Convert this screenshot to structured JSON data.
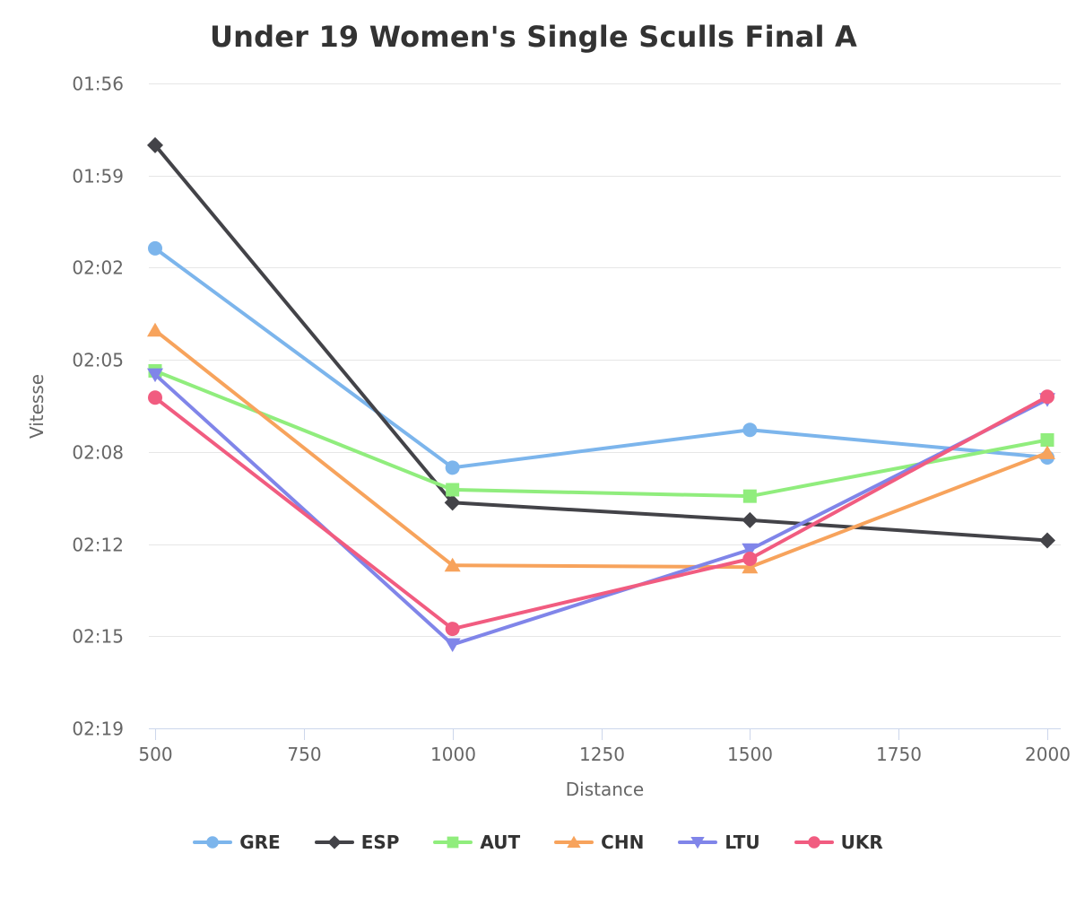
{
  "chart_data": {
    "type": "line",
    "title": "Under 19 Women's Single Sculls Final A",
    "xlabel": "Distance",
    "ylabel": "Vitesse",
    "grid": "horizontal-only",
    "legend_position": "bottom",
    "x": [
      500,
      1000,
      1500,
      2000
    ],
    "x_axis": {
      "tick_labels": [
        "500",
        "750",
        "1000",
        "1250",
        "1500",
        "1750",
        "2000"
      ],
      "tick_values": [
        500,
        750,
        1000,
        1250,
        1500,
        1750,
        2000
      ],
      "range_shown": [
        490,
        2023
      ]
    },
    "y_axis": {
      "note": "speed axis linear in m/s, tick labels shown as pace per 500m",
      "range_mps": [
        3.6,
        4.3
      ],
      "ticks": [
        {
          "speed_mps": 4.3,
          "label": "01:56"
        },
        {
          "speed_mps": 4.2,
          "label": "01:59"
        },
        {
          "speed_mps": 4.1,
          "label": "02:02"
        },
        {
          "speed_mps": 4.0,
          "label": "02:05"
        },
        {
          "speed_mps": 3.9,
          "label": "02:08"
        },
        {
          "speed_mps": 3.8,
          "label": "02:12"
        },
        {
          "speed_mps": 3.7,
          "label": "02:15"
        },
        {
          "speed_mps": 3.6,
          "label": "02:19"
        }
      ]
    },
    "series": [
      {
        "name": "GRE",
        "color": "#7cb5ec",
        "marker": "circle",
        "speed_mps": [
          4.121,
          3.883,
          3.924,
          3.894
        ],
        "pace_per_500m": [
          "02:01.3",
          "02:08.8",
          "02:07.4",
          "02:08.4"
        ]
      },
      {
        "name": "ESP",
        "color": "#434348",
        "marker": "diamond",
        "speed_mps": [
          4.233,
          3.845,
          3.826,
          3.804
        ],
        "pace_per_500m": [
          "01:58.1",
          "02:10.0",
          "02:10.7",
          "02:11.4"
        ]
      },
      {
        "name": "AUT",
        "color": "#90ed7d",
        "marker": "square",
        "speed_mps": [
          3.988,
          3.859,
          3.852,
          3.913
        ],
        "pace_per_500m": [
          "02:05.4",
          "02:09.6",
          "02:09.8",
          "02:07.8"
        ]
      },
      {
        "name": "CHN",
        "color": "#f7a35c",
        "marker": "triangle",
        "speed_mps": [
          4.032,
          3.777,
          3.775,
          3.899
        ],
        "pace_per_500m": [
          "02:04.0",
          "02:12.4",
          "02:12.4",
          "02:08.2"
        ]
      },
      {
        "name": "LTU",
        "color": "#8085e9",
        "marker": "triangle-down",
        "speed_mps": [
          3.984,
          3.691,
          3.794,
          3.957
        ],
        "pace_per_500m": [
          "02:05.5",
          "02:15.5",
          "02:11.8",
          "02:06.4"
        ]
      },
      {
        "name": "UKR",
        "color": "#f15c80",
        "marker": "circle",
        "speed_mps": [
          3.959,
          3.708,
          3.784,
          3.96
        ],
        "pace_per_500m": [
          "02:06.3",
          "02:14.9",
          "02:12.1",
          "02:06.3"
        ]
      }
    ],
    "style_colors": {
      "gridline": "#e6e6e6",
      "axis_line": "#ccd6eb",
      "tick_label": "#666666",
      "axis_title": "#666666",
      "title": "#333333",
      "legend_label": "#333333"
    }
  }
}
